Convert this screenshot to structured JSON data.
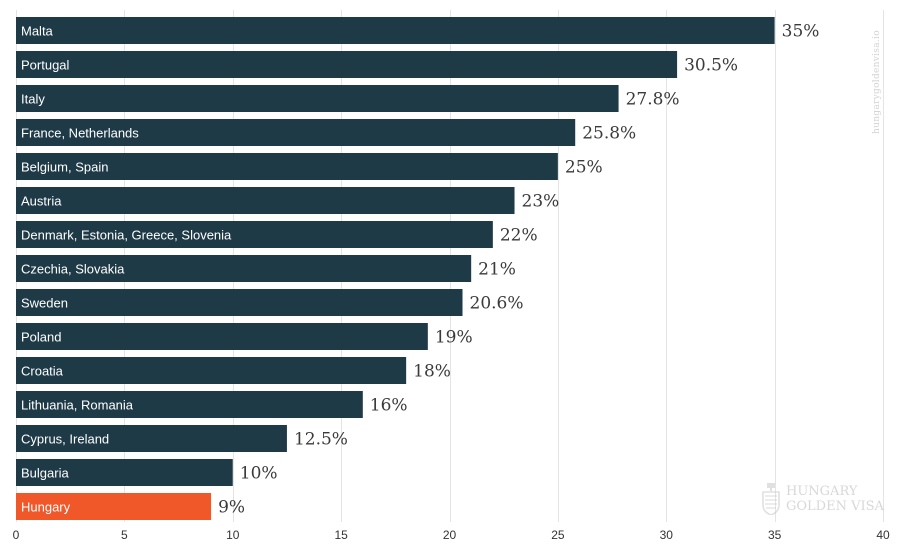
{
  "chart_data": {
    "type": "bar",
    "orientation": "horizontal",
    "categories": [
      "Malta",
      "Portugal",
      "Italy",
      "France, Netherlands",
      "Belgium, Spain",
      "Austria",
      "Denmark, Estonia, Greece, Slovenia",
      "Czechia, Slovakia",
      "Sweden",
      "Poland",
      "Croatia",
      "Lithuania, Romania",
      "Cyprus, Ireland",
      "Bulgaria",
      "Hungary"
    ],
    "values": [
      35,
      30.5,
      27.8,
      25.8,
      25,
      23,
      22,
      21,
      20.6,
      19,
      18,
      16,
      12.5,
      10,
      9
    ],
    "value_labels": [
      "35%",
      "30.5%",
      "27.8%",
      "25.8%",
      "25%",
      "23%",
      "22%",
      "21%",
      "20.6%",
      "19%",
      "18%",
      "16%",
      "12.5%",
      "10%",
      "9%"
    ],
    "highlight": "Hungary",
    "xlim": [
      0,
      40
    ],
    "x_ticks": [
      0,
      5,
      10,
      15,
      20,
      25,
      30,
      35,
      40
    ],
    "grid": true,
    "colors": {
      "bar": "#1e3a47",
      "highlight": "#f0582a",
      "grid": "#e4e4e4"
    }
  },
  "watermark": {
    "side_text": "hungarygoldenvisa.io",
    "logo_line1": "HUNGARY",
    "logo_line2": "GOLDEN VISA"
  }
}
